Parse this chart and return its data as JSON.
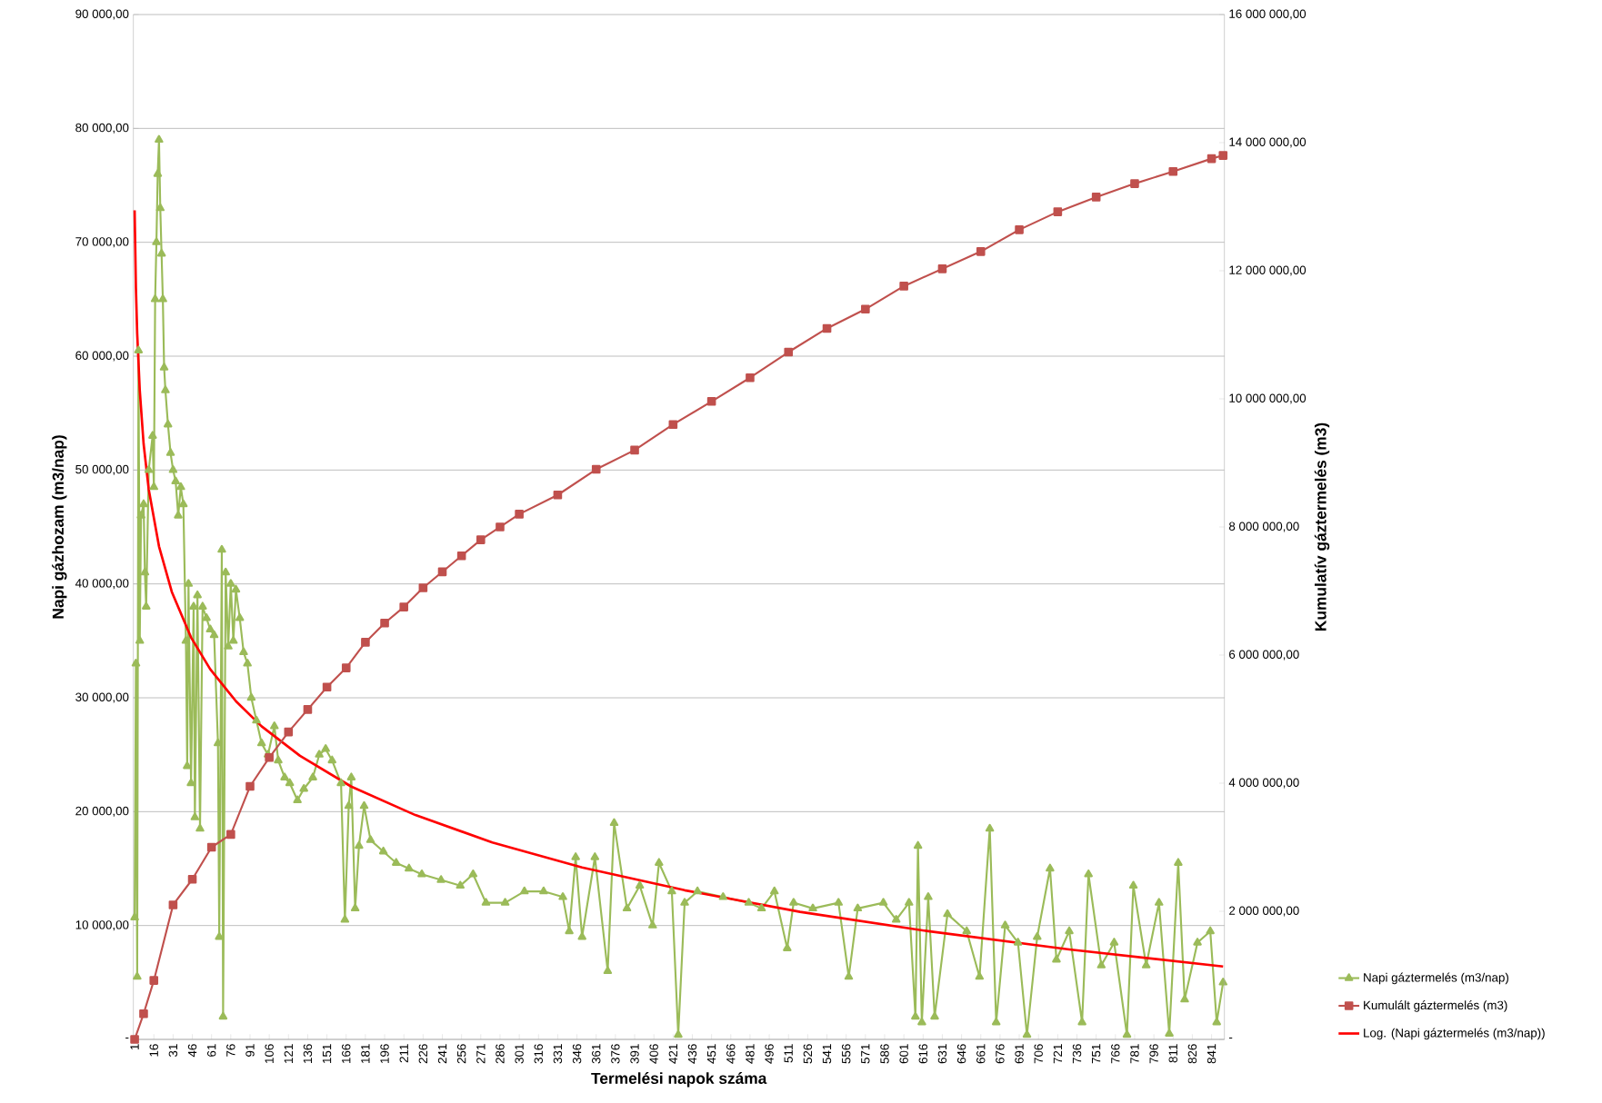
{
  "chart_data": {
    "type": "line",
    "xlabel": "Termelési napok száma",
    "ylabel": "Napi gázhozam (m3/nap)",
    "y2label": "Kumulatív gáztermelés (m3)",
    "xlim": [
      0,
      851
    ],
    "xticks": [
      1,
      16,
      31,
      46,
      61,
      76,
      91,
      106,
      121,
      136,
      151,
      166,
      181,
      196,
      211,
      226,
      241,
      256,
      271,
      286,
      301,
      316,
      331,
      346,
      361,
      376,
      391,
      406,
      421,
      436,
      451,
      466,
      481,
      496,
      511,
      526,
      541,
      556,
      571,
      586,
      601,
      616,
      631,
      646,
      661,
      676,
      691,
      706,
      721,
      736,
      751,
      766,
      781,
      796,
      811,
      826,
      841
    ],
    "ylim": [
      0,
      90000
    ],
    "yticks": [
      {
        "value": 0,
        "label": "-"
      },
      {
        "value": 10000,
        "label": "10 000,00"
      },
      {
        "value": 20000,
        "label": "20 000,00"
      },
      {
        "value": 30000,
        "label": "30 000,00"
      },
      {
        "value": 40000,
        "label": "40 000,00"
      },
      {
        "value": 50000,
        "label": "50 000,00"
      },
      {
        "value": 60000,
        "label": "60 000,00"
      },
      {
        "value": 70000,
        "label": "70 000,00"
      },
      {
        "value": 80000,
        "label": "80 000,00"
      },
      {
        "value": 90000,
        "label": "90 000,00"
      }
    ],
    "y2lim": [
      0,
      16000000
    ],
    "y2ticks": [
      {
        "value": 0,
        "label": "-"
      },
      {
        "value": 2000000,
        "label": "2 000 000,00"
      },
      {
        "value": 4000000,
        "label": "4 000 000,00"
      },
      {
        "value": 6000000,
        "label": "6 000 000,00"
      },
      {
        "value": 8000000,
        "label": "8 000 000,00"
      },
      {
        "value": 10000000,
        "label": "10 000 000,00"
      },
      {
        "value": 12000000,
        "label": "12 000 000,00"
      },
      {
        "value": 14000000,
        "label": "14 000 000,00"
      },
      {
        "value": 16000000,
        "label": "16 000 000,00"
      }
    ],
    "grid": "y",
    "legend": "bottom right",
    "series": [
      {
        "name": "Napi gáztermelés (m3/nap)",
        "type": "line",
        "marker": "triangle",
        "color": "#9bbb59",
        "x": [
          1,
          2,
          3,
          4,
          5,
          6,
          8,
          9,
          10,
          12,
          15,
          16,
          17,
          18,
          19,
          20,
          21,
          22,
          23,
          24,
          25,
          27,
          29,
          31,
          33,
          35,
          37,
          39,
          41,
          42,
          43,
          45,
          47,
          48,
          50,
          52,
          54,
          57,
          60,
          63,
          66,
          67,
          69,
          70,
          72,
          74,
          76,
          78,
          80,
          83,
          86,
          89,
          92,
          96,
          100,
          105,
          110,
          113,
          118,
          122,
          128,
          133,
          140,
          145,
          150,
          155,
          162,
          165,
          168,
          170,
          173,
          176,
          180,
          185,
          195,
          205,
          215,
          225,
          240,
          255,
          265,
          275,
          290,
          305,
          320,
          335,
          340,
          345,
          350,
          360,
          370,
          375,
          385,
          395,
          405,
          410,
          420,
          425,
          430,
          440,
          460,
          480,
          490,
          500,
          510,
          515,
          530,
          550,
          558,
          565,
          585,
          595,
          605,
          610,
          612,
          615,
          620,
          625,
          635,
          650,
          660,
          668,
          673,
          680,
          690,
          697,
          705,
          715,
          720,
          730,
          740,
          745,
          755,
          765,
          775,
          780,
          790,
          800,
          808,
          815,
          820,
          830,
          840,
          845,
          850
        ],
        "values": [
          10700,
          33000,
          5500,
          60500,
          35000,
          46000,
          47000,
          41000,
          38000,
          50000,
          53000,
          48500,
          65000,
          70000,
          76000,
          79000,
          73000,
          69000,
          65000,
          59000,
          57000,
          54000,
          51500,
          50000,
          49000,
          46000,
          48500,
          47000,
          35000,
          24000,
          40000,
          22500,
          38000,
          19500,
          39000,
          18500,
          38000,
          37000,
          36000,
          35500,
          26000,
          9000,
          43000,
          2000,
          41000,
          34500,
          40000,
          35000,
          39500,
          37000,
          34000,
          33000,
          30000,
          28000,
          26000,
          25000,
          27500,
          24500,
          23000,
          22500,
          21000,
          22000,
          23000,
          25000,
          25500,
          24500,
          22500,
          10500,
          20500,
          23000,
          11500,
          17000,
          20500,
          17500,
          16500,
          15500,
          15000,
          14500,
          14000,
          13500,
          14500,
          12000,
          12000,
          13000,
          13000,
          12500,
          9500,
          16000,
          9000,
          16000,
          6000,
          19000,
          11500,
          13500,
          10000,
          15500,
          13000,
          400,
          12000,
          13000,
          12500,
          12000,
          11500,
          13000,
          8000,
          12000,
          11500,
          12000,
          5500,
          11500,
          12000,
          10500,
          12000,
          2000,
          17000,
          1500,
          12500,
          2000,
          11000,
          9500,
          5500,
          18500,
          1500,
          10000,
          8500,
          400,
          9000,
          15000,
          7000,
          9500,
          1500,
          14500,
          6500,
          8500,
          400,
          13500,
          6500,
          12000,
          500,
          15500,
          3500,
          8500,
          9500,
          1500,
          5000
        ]
      },
      {
        "name": "Kumulált gáztermelés (m3)",
        "type": "line",
        "marker": "square",
        "color": "#c0504d",
        "axis": "y2",
        "x": [
          1,
          8,
          16,
          31,
          46,
          61,
          76,
          91,
          106,
          121,
          136,
          151,
          166,
          181,
          196,
          211,
          226,
          241,
          256,
          271,
          286,
          301,
          331,
          361,
          391,
          421,
          451,
          481,
          511,
          541,
          571,
          601,
          631,
          661,
          691,
          721,
          751,
          781,
          811,
          841,
          850
        ],
        "values": [
          0,
          400000,
          920000,
          2100000,
          2500000,
          3000000,
          3200000,
          3950000,
          4400000,
          4800000,
          5150000,
          5500000,
          5800000,
          6200000,
          6500000,
          6750000,
          7050000,
          7300000,
          7550000,
          7800000,
          8000000,
          8200000,
          8500000,
          8900000,
          9200000,
          9600000,
          9960000,
          10330000,
          10730000,
          11100000,
          11400000,
          11760000,
          12030000,
          12300000,
          12640000,
          12920000,
          13150000,
          13360000,
          13550000,
          13750000,
          13800000
        ]
      },
      {
        "name": "Log. (Napi gáztermelés (m3/nap))",
        "type": "line",
        "marker": "none",
        "color": "#ff0000",
        "x": [
          1,
          2,
          3,
          5,
          8,
          12,
          20,
          30,
          45,
          60,
          80,
          100,
          130,
          170,
          220,
          280,
          350,
          430,
          520,
          620,
          730,
          850
        ],
        "values": [
          72800,
          66000,
          62000,
          57000,
          52300,
          48300,
          43300,
          39300,
          35300,
          32500,
          29700,
          27500,
          24900,
          22200,
          19700,
          17300,
          15100,
          13100,
          11200,
          9500,
          7900,
          6400
        ]
      }
    ]
  }
}
